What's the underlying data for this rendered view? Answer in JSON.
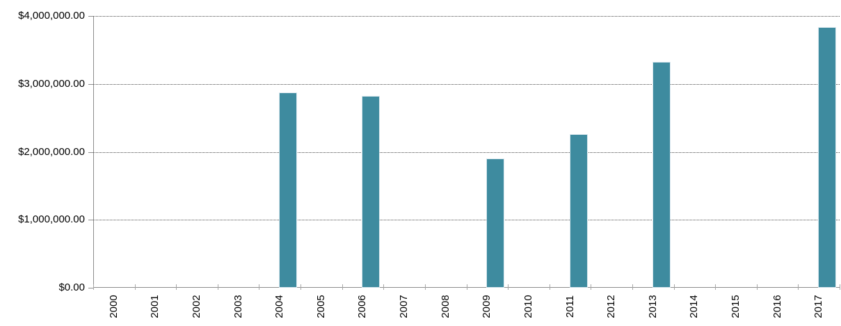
{
  "chart_data": {
    "type": "bar",
    "title": "",
    "xlabel": "",
    "ylabel": "",
    "categories": [
      "2000",
      "2001",
      "2002",
      "2003",
      "2004",
      "2005",
      "2006",
      "2007",
      "2008",
      "2009",
      "2010",
      "2011",
      "2012",
      "2013",
      "2014",
      "2015",
      "2016",
      "2017"
    ],
    "values": [
      0,
      0,
      0,
      0,
      2870000,
      0,
      2820000,
      0,
      0,
      1900000,
      0,
      2260000,
      0,
      3320000,
      0,
      0,
      0,
      3835000
    ],
    "y_tick_labels": [
      "$0.00",
      "$1,000,000.00",
      "$2,000,000.00",
      "$3,000,000.00",
      "$4,000,000.00"
    ],
    "ylim": [
      0,
      4000000
    ],
    "y_step": 1000000,
    "grid": "horizontal-dotted",
    "legend_position": "none",
    "bar_color": "#3e8b9f",
    "bar_border_color": "#d9e7ee",
    "axis_color": "#8c8c8c",
    "gridline_color": "#4a4a4a",
    "label_color": "#000000"
  }
}
